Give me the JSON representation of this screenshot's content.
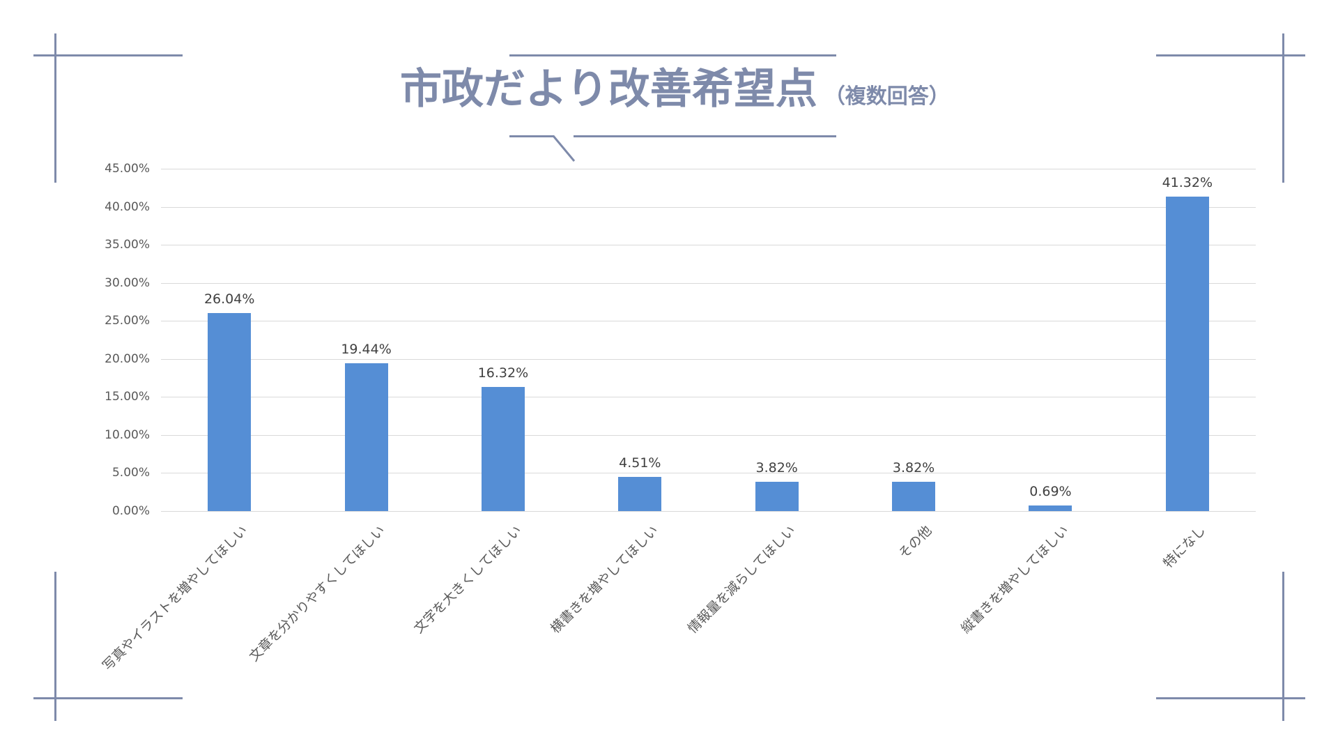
{
  "title": {
    "main": "市政だより改善希望点",
    "sub": "（複数回答）"
  },
  "colors": {
    "accent": "#7e8aaa",
    "bar": "#558ed5",
    "grid": "#d9d9d9",
    "axis_text": "#595959",
    "data_label": "#404040"
  },
  "chart_data": {
    "type": "bar",
    "title": "市政だより改善希望点（複数回答）",
    "xlabel": "",
    "ylabel": "",
    "ylim": [
      0,
      45
    ],
    "grid": true,
    "legend": null,
    "categories": [
      "写真やイラストを増やしてほしい",
      "文章を分かりやすくしてほしい",
      "文字を大きくしてほしい",
      "横書きを増やしてほしい",
      "情報量を減らしてほしい",
      "その他",
      "縦書きを増やしてほしい",
      "特になし"
    ],
    "values": [
      26.04,
      19.44,
      16.32,
      4.51,
      3.82,
      3.82,
      0.69,
      41.32
    ],
    "value_labels": [
      "26.04%",
      "19.44%",
      "16.32%",
      "4.51%",
      "3.82%",
      "3.82%",
      "0.69%",
      "41.32%"
    ],
    "y_ticks": [
      "0.00%",
      "5.00%",
      "10.00%",
      "15.00%",
      "20.00%",
      "25.00%",
      "30.00%",
      "35.00%",
      "40.00%",
      "45.00%"
    ]
  }
}
